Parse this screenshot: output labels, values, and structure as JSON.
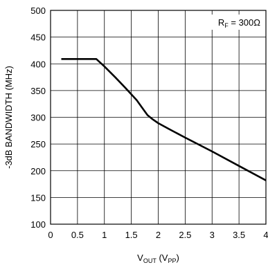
{
  "chart_data": {
    "type": "line",
    "title": "",
    "xlabel": {
      "main": "V",
      "sub": "OUT",
      "paren_open": " (V",
      "paren_sub": "PP",
      "paren_close": ")"
    },
    "ylabel": "-3dB BANDWIDTH (MHz)",
    "xlim": [
      0,
      4
    ],
    "ylim": [
      100,
      500
    ],
    "xticks": [
      0,
      0.5,
      1,
      1.5,
      2,
      2.5,
      3,
      3.5,
      4
    ],
    "xtick_labels": [
      "0",
      "0.5",
      "1",
      "1.5",
      "2",
      "2.5",
      "3",
      "3.5",
      "4"
    ],
    "yticks": [
      100,
      150,
      200,
      250,
      300,
      350,
      400,
      450,
      500
    ],
    "ytick_labels": [
      "100",
      "150",
      "200",
      "250",
      "300",
      "350",
      "400",
      "450",
      "500"
    ],
    "grid": true,
    "annotation": {
      "main": "R",
      "sub": "F",
      "rest": " = 300Ω"
    },
    "series": [
      {
        "x": [
          0.2,
          0.4,
          0.6,
          0.85,
          1.0,
          1.2,
          1.4,
          1.6,
          1.7,
          1.8,
          1.9,
          2.0,
          2.2,
          2.5,
          3.0,
          3.5,
          4.0
        ],
        "y": [
          409,
          409,
          409,
          409,
          395,
          375,
          354,
          332,
          318,
          304,
          296,
          289,
          278,
          262,
          236,
          209,
          182
        ]
      }
    ]
  }
}
